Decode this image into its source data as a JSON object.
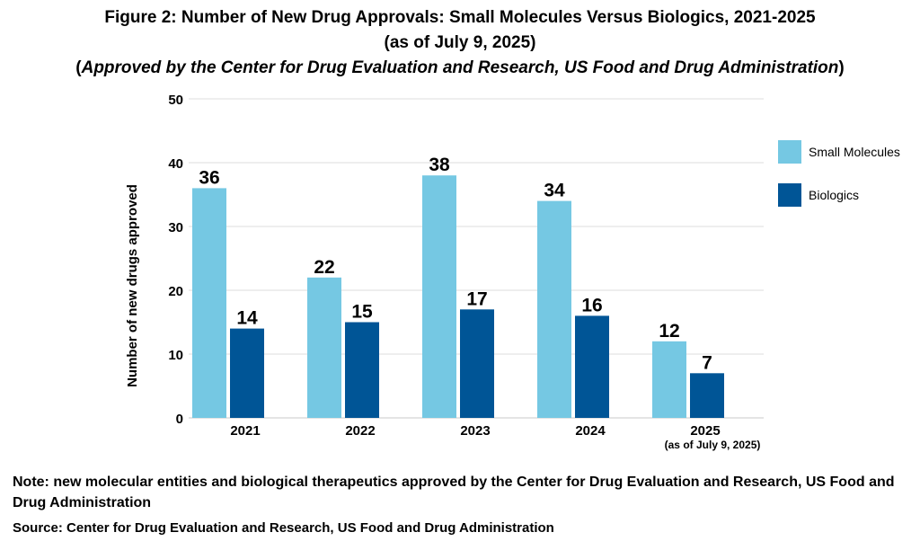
{
  "title": {
    "line1": "Figure 2: Number of New Drug Approvals: Small Molecules Versus Biologics, 2021-2025",
    "line2": "(as of July 9, 2025)",
    "line3_open": "(",
    "line3_italic": "Approved by the Center for Drug Evaluation and Research, US Food and Drug Administration",
    "line3_close": ")"
  },
  "note": "Note: new molecular entities and biological therapeutics approved by the Center for Drug Evaluation and Research, US Food and Drug Administration",
  "source": "Source: Center for Drug Evaluation and Research, US Food and Drug Administration",
  "chart_data": {
    "type": "bar",
    "categories": [
      "2021",
      "2022",
      "2023",
      "2024",
      "2025"
    ],
    "category_sublabels": [
      "",
      "",
      "",
      "",
      "(as of July 9, 2025)"
    ],
    "series": [
      {
        "name": "Small Molecules",
        "color": "#75c8e3",
        "values": [
          36,
          22,
          38,
          34,
          12
        ]
      },
      {
        "name": "Biologics",
        "color": "#005596",
        "values": [
          14,
          15,
          17,
          16,
          7
        ]
      }
    ],
    "ylabel": "Number of new drugs approved",
    "xlabel": "",
    "ylim": [
      0,
      50
    ],
    "yticks": [
      0,
      10,
      20,
      30,
      40,
      50
    ],
    "grid": true,
    "legend_position": "right",
    "data_labels": true
  }
}
